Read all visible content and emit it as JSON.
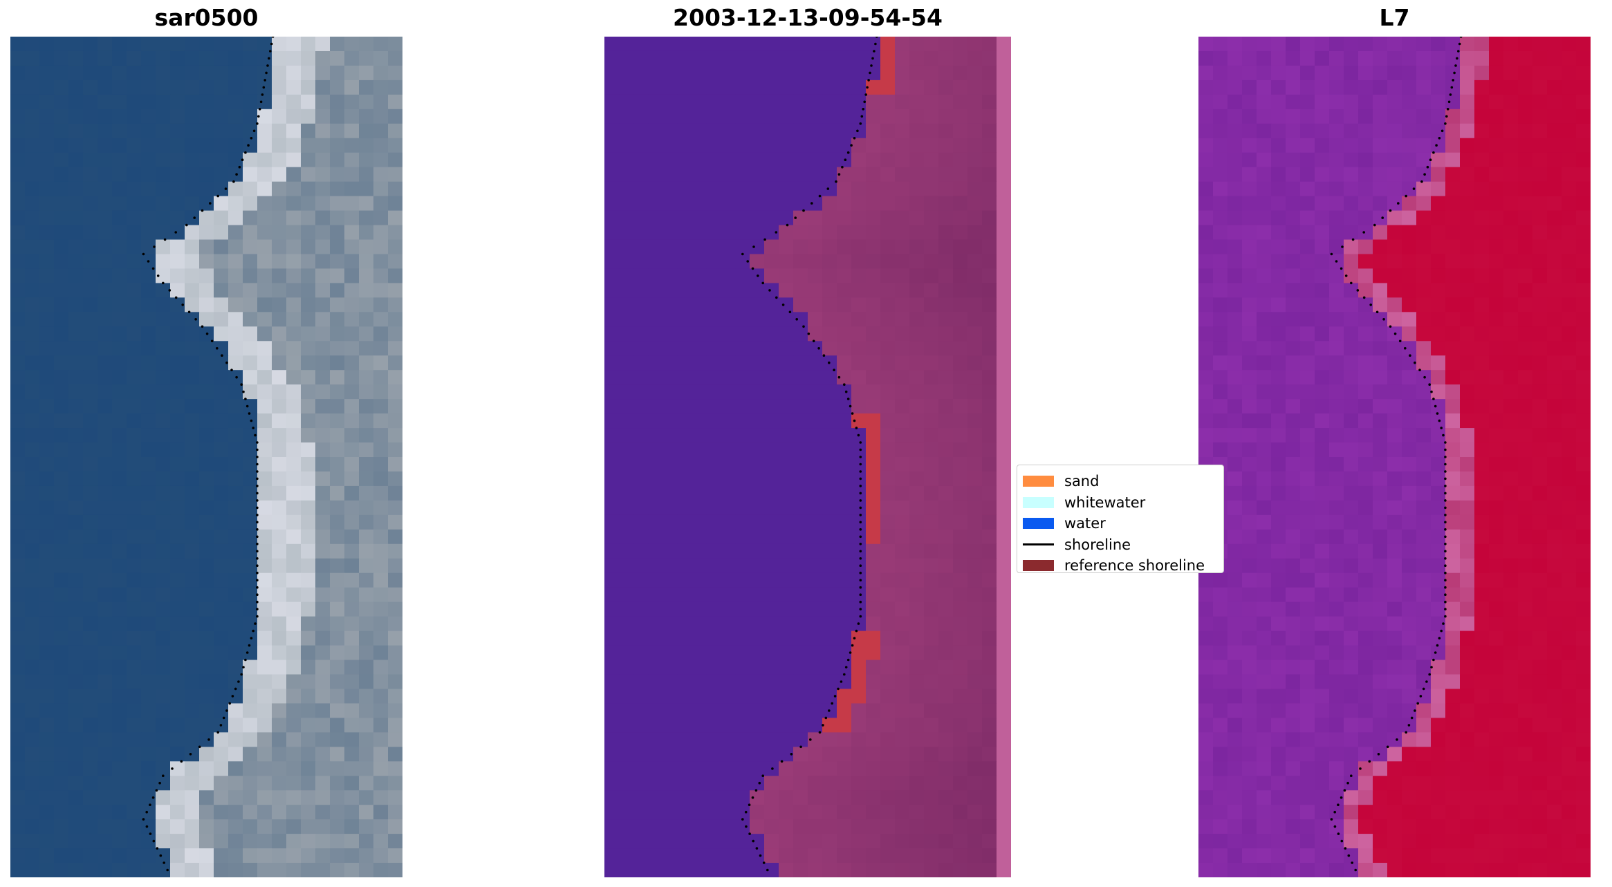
{
  "panels": [
    {
      "title": "sar0500",
      "kind": "rgb"
    },
    {
      "title": "2003-12-13-09-54-54",
      "kind": "classified"
    },
    {
      "title": "L7",
      "kind": "ndwi"
    }
  ],
  "legend": {
    "items": [
      {
        "label": "sand",
        "color": "#ff8c3f",
        "type": "patch"
      },
      {
        "label": "whitewater",
        "color": "#c8ffff",
        "type": "patch"
      },
      {
        "label": "water",
        "color": "#0a5af0",
        "type": "patch"
      },
      {
        "label": "shoreline",
        "color": "#000000",
        "type": "line"
      },
      {
        "label": "reference shoreline",
        "color": "#8b2a2e",
        "type": "patch"
      }
    ]
  },
  "colors": {
    "water_class": "#542399",
    "land_class": "#9b3c78",
    "reference_band": "#c63a48",
    "ndwi_water": "#8c2eaa",
    "ndwi_land": "#c5043a",
    "rgb_water": "#1f4a7a",
    "rgb_sand": "#b8c0c8"
  }
}
